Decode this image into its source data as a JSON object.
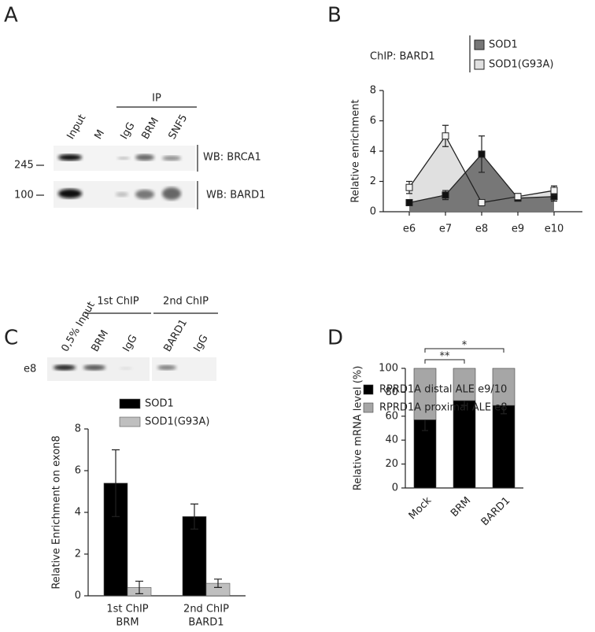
{
  "figure": {
    "panels": [
      "A",
      "B",
      "C",
      "D"
    ],
    "blot_a": {
      "lanes": [
        "Input",
        "M",
        "IgG",
        "BRM",
        "SNF5"
      ],
      "ip_label": "IP",
      "markers": [
        "245",
        "100"
      ],
      "rows": [
        "WB: BRCA1",
        "WB: BARD1"
      ]
    },
    "blot_c": {
      "lanes": [
        "0,5% Input",
        "BRM",
        "IgG",
        "BARD1",
        "IgG"
      ],
      "groups": [
        "1st ChIP",
        "2nd ChIP"
      ],
      "row": "e8"
    }
  },
  "chart_data": [
    {
      "type": "line",
      "legend_title": "ChIP: BARD1",
      "ylabel": "Relative enrichment",
      "categories": [
        "e6",
        "e7",
        "e8",
        "e9",
        "e10"
      ],
      "series": [
        {
          "name": "SOD1",
          "color": "#777777",
          "values": [
            0.6,
            1.1,
            3.8,
            0.9,
            1.0
          ],
          "errors": [
            0.2,
            0.3,
            1.2,
            0.2,
            0.3
          ]
        },
        {
          "name": "SOD1(G93A)",
          "color": "#e0e0e0",
          "values": [
            1.6,
            5.0,
            0.6,
            1.0,
            1.4
          ],
          "errors": [
            0.4,
            0.7,
            0.2,
            0.2,
            0.3
          ]
        }
      ],
      "ylim": [
        0,
        8
      ],
      "yticks": [
        0,
        2,
        4,
        6,
        8
      ]
    },
    {
      "type": "bar",
      "ylabel": "Relative Enrichment on exon8",
      "categories": [
        "BRM",
        "BARD1"
      ],
      "category_groups": [
        "1st ChIP",
        "2nd ChIP"
      ],
      "series": [
        {
          "name": "SOD1",
          "color": "#000000",
          "values": [
            5.4,
            3.8
          ],
          "errors": [
            1.6,
            0.6
          ]
        },
        {
          "name": "SOD1(G93A)",
          "color": "#bfbfbf",
          "values": [
            0.4,
            0.6
          ],
          "errors": [
            0.3,
            0.2
          ]
        }
      ],
      "ylim": [
        0,
        8
      ],
      "yticks": [
        0,
        2,
        4,
        6,
        8
      ]
    },
    {
      "type": "stacked_bar",
      "ylabel": "Relative mRNA level (%)",
      "categories": [
        "Mock",
        "BRM",
        "BARD1"
      ],
      "series": [
        {
          "name": "RPRD1A distal ALE e9/10",
          "color": "#000000",
          "values": [
            57,
            73,
            69
          ],
          "errors": [
            9,
            4,
            7
          ]
        },
        {
          "name": "RPRD1A proximal ALE e8",
          "color": "#a6a6a6",
          "values": [
            43,
            27,
            31
          ]
        }
      ],
      "annotations": [
        "**",
        "*"
      ],
      "ylim": [
        0,
        100
      ],
      "yticks": [
        0,
        20,
        40,
        60,
        80,
        100
      ]
    }
  ]
}
